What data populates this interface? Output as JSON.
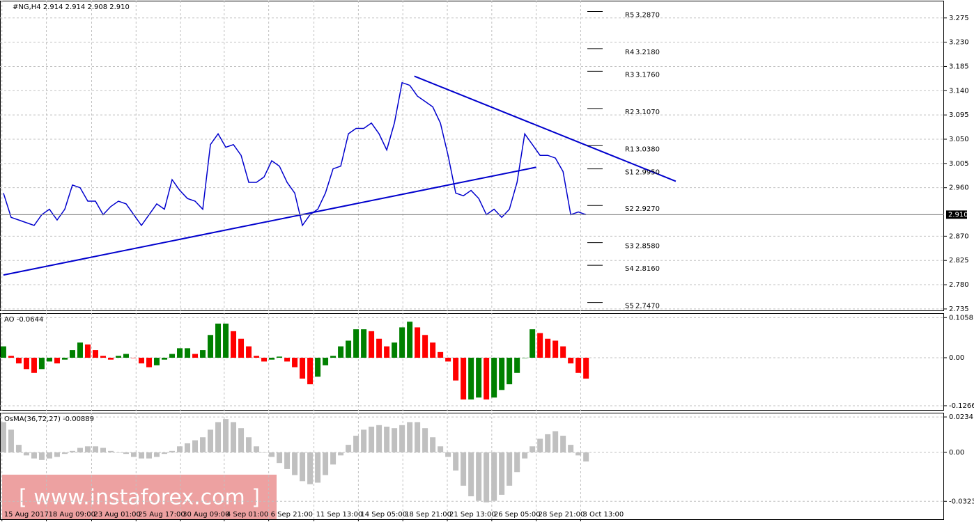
{
  "chart_data": [
    {
      "type": "line",
      "title": "#NG,H4  2.914 2.914 2.908 2.910",
      "color": "#0000cd",
      "values": [
        2.95,
        2.905,
        2.9,
        2.895,
        2.89,
        2.91,
        2.92,
        2.9,
        2.92,
        2.965,
        2.96,
        2.935,
        2.935,
        2.91,
        2.925,
        2.935,
        2.93,
        2.91,
        2.89,
        2.91,
        2.93,
        2.92,
        2.975,
        2.955,
        2.94,
        2.935,
        2.92,
        3.04,
        3.06,
        3.035,
        3.04,
        3.02,
        2.97,
        2.97,
        2.98,
        3.01,
        3.0,
        2.97,
        2.95,
        2.89,
        2.91,
        2.92,
        2.95,
        2.995,
        3.0,
        3.06,
        3.07,
        3.07,
        3.08,
        3.06,
        3.03,
        3.08,
        3.155,
        3.15,
        3.13,
        3.12,
        3.11,
        3.08,
        3.02,
        2.95,
        2.945,
        2.955,
        2.94,
        2.91,
        2.92,
        2.905,
        2.92,
        2.97,
        3.06,
        3.04,
        3.02,
        3.02,
        3.015,
        2.99,
        2.91,
        2.915,
        2.91
      ],
      "xlim": [
        -0.45,
        122.7
      ],
      "ylim": [
        2.731,
        3.307
      ],
      "yticks": [
        3.275,
        {
          "value": 3.23,
          "label": "3.230"
        },
        3.185,
        {
          "value": 3.14,
          "label": "3.140"
        },
        3.095,
        {
          "value": 3.05,
          "label": "3.050"
        },
        3.005,
        {
          "value": 2.96,
          "label": "2.960"
        },
        {
          "value": 2.87,
          "label": "2.870"
        },
        2.825,
        {
          "value": 2.78,
          "label": "2.780"
        },
        2.735
      ],
      "last": {
        "value": 2.91,
        "label": "2.910"
      },
      "levels": [
        {
          "name": "R5",
          "value": 3.287,
          "label": "3.2870"
        },
        {
          "name": "R4",
          "value": 3.218,
          "label": "3.2180"
        },
        {
          "name": "R3",
          "value": 3.176,
          "label": "3.1760"
        },
        {
          "name": "R2",
          "value": 3.107,
          "label": "3.1070"
        },
        {
          "name": "R1",
          "value": 3.038,
          "label": "3.0380"
        },
        {
          "name": "S1",
          "value": 2.995,
          "label": "2.9950"
        },
        {
          "name": "S2",
          "value": 2.927,
          "label": "2.9270"
        },
        {
          "name": "S3",
          "value": 2.858,
          "label": "2.8580"
        },
        {
          "name": "S4",
          "value": 2.816,
          "label": "2.8160"
        },
        {
          "name": "S5",
          "value": 2.747,
          "label": "2.7470"
        }
      ],
      "trendlines": [
        {
          "color": "#0000cd",
          "x": [
            0,
            69.5
          ],
          "y": [
            2.798,
            2.998
          ]
        },
        {
          "color": "#0000cd",
          "x": [
            53.6,
            87.7
          ],
          "y": [
            3.167,
            2.972
          ]
        }
      ],
      "watermark": "[ www.instaforex.com ]"
    },
    {
      "type": "histogram",
      "title": "AO -0.0644",
      "up_color": "#008000",
      "down_color": "#ff0000",
      "values": [
        0.03,
        0.005,
        -0.015,
        -0.03,
        -0.04,
        -0.03,
        -0.01,
        -0.015,
        -0.005,
        0.02,
        0.04,
        0.035,
        0.02,
        0.005,
        -0.005,
        0.005,
        0.01,
        0.0,
        -0.015,
        -0.025,
        -0.02,
        -0.005,
        0.01,
        0.025,
        0.025,
        0.01,
        0.02,
        0.06,
        0.09,
        0.09,
        0.07,
        0.05,
        0.03,
        0.005,
        -0.01,
        -0.005,
        0.003,
        -0.01,
        -0.025,
        -0.055,
        -0.07,
        -0.05,
        -0.02,
        0.005,
        0.03,
        0.045,
        0.075,
        0.075,
        0.07,
        0.05,
        0.03,
        0.04,
        0.08,
        0.095,
        0.08,
        0.06,
        0.04,
        0.015,
        -0.01,
        -0.06,
        -0.11,
        -0.11,
        -0.105,
        -0.11,
        -0.105,
        -0.085,
        -0.07,
        -0.04,
        0.0,
        0.075,
        0.065,
        0.05,
        0.045,
        0.03,
        -0.015,
        -0.04,
        -0.055
      ],
      "xlim": [
        -0.45,
        122.7
      ],
      "ylim": [
        -0.1395,
        0.1174
      ],
      "yticks": [
        0.1058,
        {
          "value": 0,
          "label": "0.00"
        },
        -0.1266
      ]
    },
    {
      "type": "histogram",
      "title": "OsMA(36,72,27) -0.00889",
      "color": "#c0c0c0",
      "values": [
        0.02,
        0.015,
        0.005,
        -0.002,
        -0.004,
        -0.005,
        -0.004,
        -0.003,
        -0.001,
        0.001,
        0.003,
        0.004,
        0.004,
        0.003,
        0.001,
        0.0,
        -0.001,
        -0.003,
        -0.004,
        -0.004,
        -0.003,
        -0.001,
        0.001,
        0.004,
        0.006,
        0.008,
        0.01,
        0.015,
        0.02,
        0.022,
        0.02,
        0.016,
        0.01,
        0.004,
        0.0,
        -0.003,
        -0.007,
        -0.011,
        -0.015,
        -0.019,
        -0.021,
        -0.02,
        -0.015,
        -0.008,
        -0.002,
        0.005,
        0.011,
        0.015,
        0.017,
        0.018,
        0.017,
        0.016,
        0.018,
        0.02,
        0.02,
        0.016,
        0.01,
        0.004,
        -0.003,
        -0.012,
        -0.022,
        -0.029,
        -0.032,
        -0.033,
        -0.032,
        -0.028,
        -0.022,
        -0.013,
        -0.004,
        0.004,
        0.009,
        0.012,
        0.014,
        0.011,
        0.005,
        -0.002,
        -0.006
      ],
      "xlim": [
        -0.45,
        122.7
      ],
      "ylim": [
        -0.0446,
        0.0262
      ],
      "yticks": [
        0.02341,
        {
          "value": 0,
          "label": "0.00"
        },
        -0.03231
      ],
      "xticks": [
        {
          "value": -0.2,
          "label": "15 Aug 2017"
        },
        {
          "value": 5.6,
          "label": "18 Aug 09:00"
        },
        {
          "value": 11.5,
          "label": "23 Aug 01:00"
        },
        {
          "value": 17.3,
          "label": "25 Aug 17:00"
        },
        {
          "value": 23.1,
          "label": "30 Aug 09:00"
        },
        {
          "value": 28.8,
          "label": "4 Sep 01:00"
        },
        {
          "value": 34.6,
          "label": "6 Sep 21:00"
        },
        {
          "value": 40.5,
          "label": "11 Sep 13:00"
        },
        {
          "value": 46.3,
          "label": "14 Sep 05:00"
        },
        {
          "value": 52.1,
          "label": "18 Sep 21:00"
        },
        {
          "value": 57.9,
          "label": "21 Sep 13:00"
        },
        {
          "value": 63.7,
          "label": "26 Sep 05:00"
        },
        {
          "value": 69.5,
          "label": "28 Sep 21:00"
        },
        {
          "value": 75.3,
          "label": "3 Oct 13:00"
        }
      ]
    }
  ]
}
